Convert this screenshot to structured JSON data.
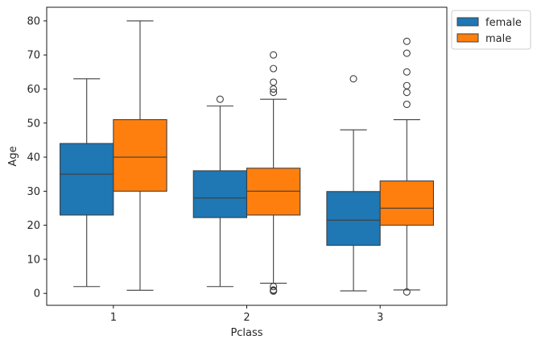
{
  "chart_data": {
    "type": "boxplot",
    "title": "",
    "xlabel": "Pclass",
    "ylabel": "Age",
    "categories": [
      "1",
      "2",
      "3"
    ],
    "ylim": [
      -3.5,
      84
    ],
    "yticks": [
      0,
      10,
      20,
      30,
      40,
      50,
      60,
      70,
      80
    ],
    "grid": false,
    "legend_position": "upper right, outside plot area",
    "series": [
      {
        "name": "female",
        "color": "#1f77b4",
        "boxes": [
          {
            "category": "1",
            "whisker_low": 2,
            "q1": 23,
            "median": 35,
            "q3": 44,
            "whisker_high": 63,
            "outliers": []
          },
          {
            "category": "2",
            "whisker_low": 2,
            "q1": 22.25,
            "median": 28,
            "q3": 36,
            "whisker_high": 55,
            "outliers": [
              57
            ]
          },
          {
            "category": "3",
            "whisker_low": 0.75,
            "q1": 14.1,
            "median": 21.5,
            "q3": 29.9,
            "whisker_high": 48,
            "outliers": [
              63
            ]
          }
        ]
      },
      {
        "name": "male",
        "color": "#ff7f0e",
        "boxes": [
          {
            "category": "1",
            "whisker_low": 0.92,
            "q1": 30,
            "median": 40,
            "q3": 51,
            "whisker_high": 80,
            "outliers": []
          },
          {
            "category": "2",
            "whisker_low": 3,
            "q1": 23,
            "median": 30,
            "q3": 36.75,
            "whisker_high": 57,
            "outliers": [
              59,
              60,
              62,
              66,
              70,
              0.67,
              0.83,
              1,
              2
            ]
          },
          {
            "category": "3",
            "whisker_low": 1,
            "q1": 20,
            "median": 25,
            "q3": 33,
            "whisker_high": 51,
            "outliers": [
              55.5,
              59,
              61,
              65,
              70.5,
              74,
              0.42
            ]
          }
        ]
      }
    ]
  }
}
